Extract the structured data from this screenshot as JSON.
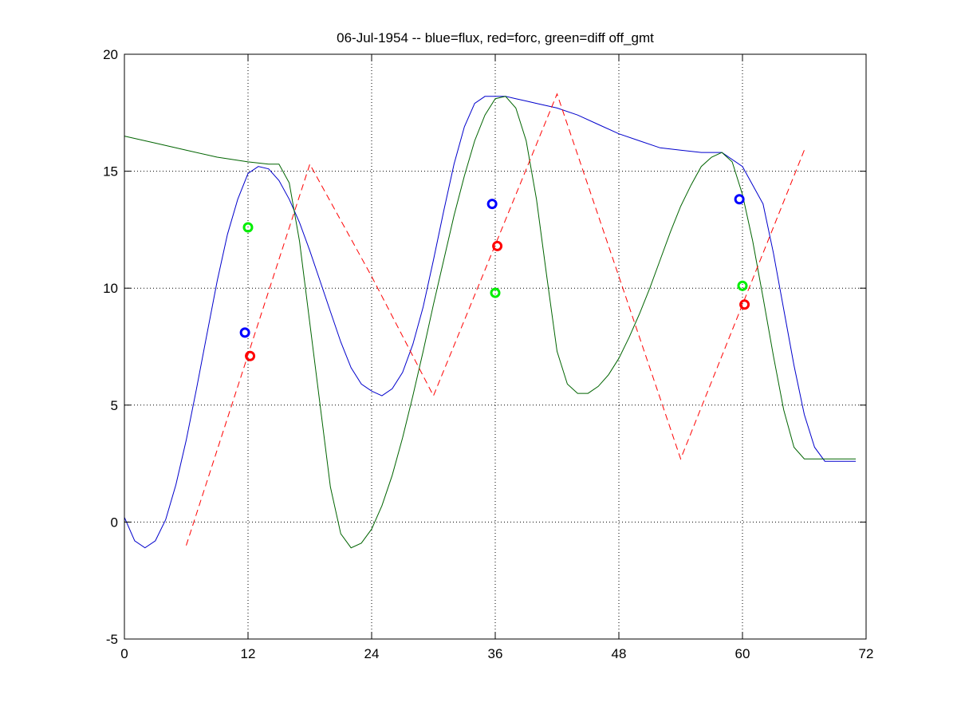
{
  "chart_data": {
    "type": "line",
    "title": "06-Jul-1954 -- blue=flux, red=forc, green=diff off_gmt",
    "xlabel": "",
    "ylabel": "",
    "xlim": [
      0,
      72
    ],
    "ylim": [
      -5,
      20
    ],
    "xticks": [
      0,
      12,
      24,
      36,
      48,
      60,
      72
    ],
    "yticks": [
      -5,
      0,
      5,
      10,
      15,
      20
    ],
    "grid": true,
    "colors": {
      "flux": "#0000cc",
      "forc": "#ff0000",
      "diff": "#006400",
      "obs_green": "#00ee00"
    },
    "series": [
      {
        "color": "#0000cc",
        "style": "solid",
        "x": [
          0,
          1,
          2,
          3,
          4,
          5,
          6,
          7,
          8,
          9,
          10,
          11,
          12,
          13,
          14,
          15,
          16,
          17,
          18,
          19,
          20,
          21,
          22,
          23,
          24,
          25,
          26,
          27,
          28,
          29,
          30,
          31,
          32,
          33,
          34,
          35,
          36,
          37,
          38,
          39,
          40,
          42,
          44,
          46,
          48,
          50,
          52,
          54,
          56,
          58,
          60,
          62,
          63,
          64,
          65,
          66,
          67,
          68,
          69,
          70,
          71
        ],
        "y": [
          0.2,
          -0.8,
          -1.1,
          -0.8,
          0.1,
          1.6,
          3.5,
          5.7,
          8.0,
          10.3,
          12.3,
          13.8,
          14.9,
          15.2,
          15.1,
          14.6,
          13.8,
          12.8,
          11.6,
          10.3,
          9.0,
          7.7,
          6.6,
          5.9,
          5.6,
          5.4,
          5.7,
          6.4,
          7.6,
          9.2,
          11.2,
          13.3,
          15.3,
          16.9,
          17.9,
          18.2,
          18.2,
          18.2,
          18.1,
          18.0,
          17.9,
          17.7,
          17.4,
          17.0,
          16.6,
          16.3,
          16.0,
          15.9,
          15.8,
          15.8,
          15.2,
          13.6,
          11.5,
          9.1,
          6.7,
          4.6,
          3.2,
          2.6,
          2.6,
          2.6,
          2.6
        ]
      },
      {
        "color": "#006400",
        "style": "solid",
        "x": [
          0,
          3,
          6,
          9,
          12,
          14,
          15,
          16,
          17,
          18,
          19,
          20,
          21,
          22,
          23,
          24,
          25,
          26,
          27,
          28,
          29,
          30,
          31,
          32,
          33,
          34,
          35,
          36,
          37,
          38,
          39,
          40,
          41,
          42,
          43,
          44,
          45,
          46,
          47,
          48,
          49,
          50,
          51,
          52,
          53,
          54,
          55,
          56,
          57,
          58,
          59,
          60,
          61,
          62,
          63,
          64,
          65,
          66,
          67,
          68,
          69,
          70,
          71
        ],
        "y": [
          16.5,
          16.2,
          15.9,
          15.6,
          15.4,
          15.3,
          15.3,
          14.5,
          12.0,
          8.5,
          5.0,
          1.5,
          -0.5,
          -1.1,
          -0.9,
          -0.3,
          0.7,
          2.0,
          3.6,
          5.4,
          7.3,
          9.3,
          11.2,
          13.1,
          14.8,
          16.3,
          17.4,
          18.1,
          18.2,
          17.7,
          16.3,
          13.8,
          10.5,
          7.3,
          5.9,
          5.5,
          5.5,
          5.8,
          6.3,
          7.0,
          7.9,
          8.9,
          10.0,
          11.2,
          12.4,
          13.5,
          14.4,
          15.2,
          15.6,
          15.8,
          15.4,
          14.0,
          12.0,
          9.6,
          7.1,
          4.8,
          3.2,
          2.7,
          2.7,
          2.7,
          2.7,
          2.7,
          2.7
        ]
      },
      {
        "color": "#ff0000",
        "style": "dashed",
        "x": [
          6,
          18,
          24,
          30,
          42,
          54,
          66
        ],
        "y": [
          -1.0,
          15.3,
          10.5,
          5.4,
          18.3,
          2.7,
          15.9
        ]
      }
    ],
    "markers": [
      {
        "x": 11.7,
        "y": 8.1,
        "color": "#0000ff"
      },
      {
        "x": 12.0,
        "y": 12.6,
        "color": "#00ee00"
      },
      {
        "x": 12.2,
        "y": 7.1,
        "color": "#ff0000"
      },
      {
        "x": 35.7,
        "y": 13.6,
        "color": "#0000ff"
      },
      {
        "x": 36.0,
        "y": 9.8,
        "color": "#00ee00"
      },
      {
        "x": 36.2,
        "y": 11.8,
        "color": "#ff0000"
      },
      {
        "x": 59.7,
        "y": 13.8,
        "color": "#0000ff"
      },
      {
        "x": 60.0,
        "y": 10.1,
        "color": "#00ee00"
      },
      {
        "x": 60.2,
        "y": 9.3,
        "color": "#ff0000"
      }
    ]
  }
}
